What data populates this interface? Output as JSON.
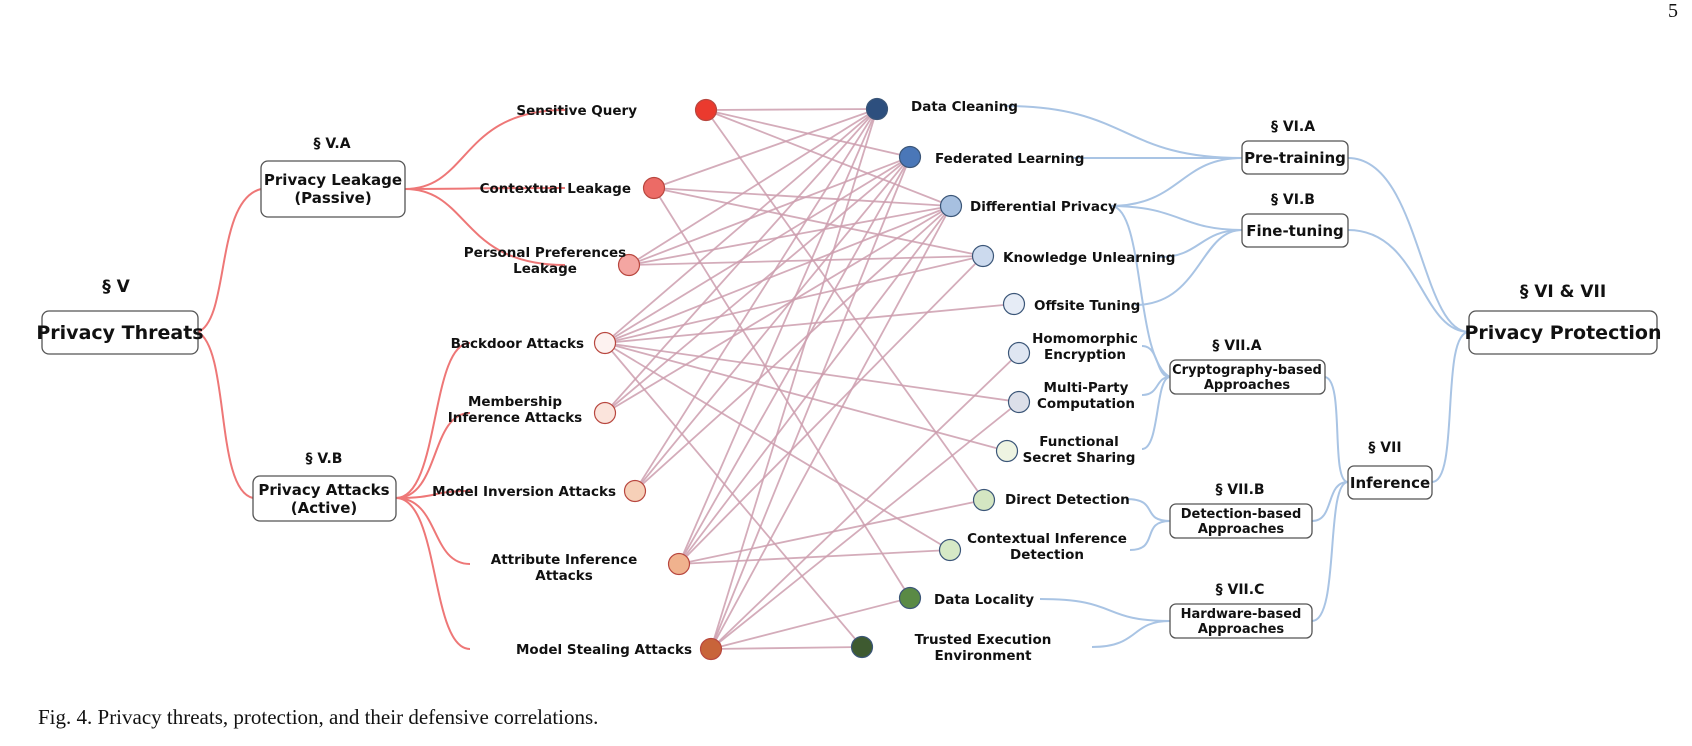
{
  "page_number": "5",
  "caption": "Fig. 4.  Privacy threats, protection, and their defensive correlations.",
  "colors": {
    "threat_line": "#ee7777",
    "protection_line": "#a9c4e4"
  },
  "root_left": {
    "section": "§ V",
    "title": "Privacy Threats"
  },
  "root_right": {
    "section": "§ VI & VII",
    "title": "Privacy Protection"
  },
  "threat_groups": [
    {
      "section": "§ V.A",
      "lines": [
        "Privacy Leakage",
        "(Passive)"
      ]
    },
    {
      "section": "§ V.B",
      "lines": [
        "Privacy Attacks",
        "(Active)"
      ]
    }
  ],
  "threats": [
    {
      "lines": [
        "Sensitive Query"
      ],
      "color": "#ea3a2e"
    },
    {
      "lines": [
        "Contextual Leakage"
      ],
      "color": "#ec6b66"
    },
    {
      "lines": [
        "Personal Preferences",
        "Leakage"
      ],
      "color": "#f4a6a2"
    },
    {
      "lines": [
        "Backdoor Attacks"
      ],
      "color": "#fdf2f0"
    },
    {
      "lines": [
        "Membership",
        "Inference Attacks"
      ],
      "color": "#fbe4dc"
    },
    {
      "lines": [
        "Model Inversion Attacks"
      ],
      "color": "#f6d0b8"
    },
    {
      "lines": [
        "Attribute Inference",
        "Attacks"
      ],
      "color": "#f0b28e"
    },
    {
      "lines": [
        "Model Stealing Attacks"
      ],
      "color": "#c8643a"
    }
  ],
  "defenses": [
    {
      "lines": [
        "Data Cleaning"
      ],
      "color": "#2d4f7e"
    },
    {
      "lines": [
        "Federated Learning"
      ],
      "color": "#4a77b8"
    },
    {
      "lines": [
        "Differential Privacy"
      ],
      "color": "#a7c0e0"
    },
    {
      "lines": [
        "Knowledge Unlearning"
      ],
      "color": "#ccdaee"
    },
    {
      "lines": [
        "Offsite Tuning"
      ],
      "color": "#e6ecf6"
    },
    {
      "lines": [
        "Homomorphic",
        "Encryption"
      ],
      "color": "#dfe6f2"
    },
    {
      "lines": [
        "Multi-Party",
        "Computation"
      ],
      "color": "#dcdfe9"
    },
    {
      "lines": [
        "Functional",
        "Secret Sharing"
      ],
      "color": "#eef4e2"
    },
    {
      "lines": [
        "Direct Detection"
      ],
      "color": "#d4e6c2"
    },
    {
      "lines": [
        "Contextual Inference",
        "Detection"
      ],
      "color": "#d6e9c6"
    },
    {
      "lines": [
        "Data Locality"
      ],
      "color": "#5a8a45"
    },
    {
      "lines": [
        "Trusted Execution",
        "Environment"
      ],
      "color": "#3e5a30"
    }
  ],
  "protection_groups": [
    {
      "section": "§ VI.A",
      "lines": [
        "Pre-training"
      ]
    },
    {
      "section": "§ VI.B",
      "lines": [
        "Fine-tuning"
      ]
    },
    {
      "section": "§ VII.A",
      "lines": [
        "Cryptography-based",
        "Approaches"
      ]
    },
    {
      "section": "§ VII.B",
      "lines": [
        "Detection-based",
        "Approaches"
      ]
    },
    {
      "section": "§ VII.C",
      "lines": [
        "Hardware-based",
        "Approaches"
      ]
    }
  ],
  "inference_group": {
    "section": "§ VII",
    "title": "Inference"
  },
  "correlations": [
    [
      0,
      0
    ],
    [
      0,
      1
    ],
    [
      0,
      2
    ],
    [
      0,
      8
    ],
    [
      1,
      0
    ],
    [
      1,
      2
    ],
    [
      1,
      3
    ],
    [
      1,
      10
    ],
    [
      2,
      0
    ],
    [
      2,
      1
    ],
    [
      2,
      2
    ],
    [
      2,
      3
    ],
    [
      3,
      0
    ],
    [
      3,
      1
    ],
    [
      3,
      2
    ],
    [
      3,
      3
    ],
    [
      3,
      4
    ],
    [
      3,
      6
    ],
    [
      3,
      7
    ],
    [
      3,
      9
    ],
    [
      3,
      11
    ],
    [
      4,
      0
    ],
    [
      4,
      1
    ],
    [
      4,
      2
    ],
    [
      5,
      0
    ],
    [
      5,
      1
    ],
    [
      5,
      2
    ],
    [
      6,
      0
    ],
    [
      6,
      1
    ],
    [
      6,
      2
    ],
    [
      6,
      3
    ],
    [
      6,
      8
    ],
    [
      6,
      9
    ],
    [
      7,
      0
    ],
    [
      7,
      1
    ],
    [
      7,
      2
    ],
    [
      7,
      5
    ],
    [
      7,
      6
    ],
    [
      7,
      10
    ],
    [
      7,
      11
    ]
  ]
}
